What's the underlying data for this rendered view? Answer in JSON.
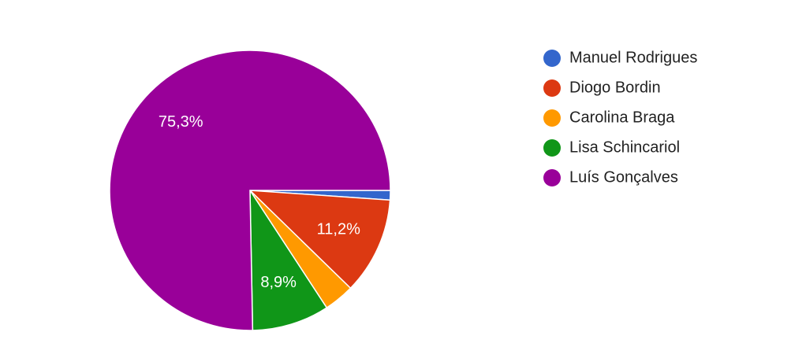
{
  "chart_data": {
    "type": "pie",
    "categories": [
      "Manuel Rodrigues",
      "Diogo Bordin",
      "Carolina Braga",
      "Lisa Schincariol",
      "Luís Gonçalves"
    ],
    "values": [
      1.1,
      11.2,
      3.5,
      8.9,
      75.3
    ],
    "value_labels": [
      null,
      "11,2%",
      null,
      "8,9%",
      "75,3%"
    ],
    "colors": [
      "#3366cc",
      "#dc3912",
      "#ff9900",
      "#109618",
      "#990099"
    ],
    "legend": "right"
  }
}
